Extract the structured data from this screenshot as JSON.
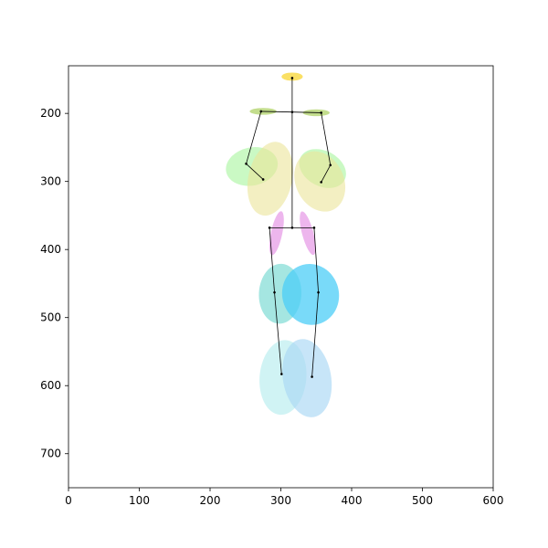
{
  "chart_data": {
    "type": "scatter",
    "title": "",
    "xlabel": "",
    "ylabel": "",
    "xlim": [
      0,
      600
    ],
    "ylim": [
      750,
      130
    ],
    "y_axis_inverted": true,
    "grid": false,
    "x_ticks": [
      0,
      100,
      200,
      300,
      400,
      500,
      600
    ],
    "y_ticks": [
      200,
      300,
      400,
      500,
      600,
      700
    ],
    "x_tick_labels": [
      "0",
      "100",
      "200",
      "300",
      "400",
      "500",
      "600"
    ],
    "y_tick_labels": [
      "200",
      "300",
      "400",
      "500",
      "600",
      "700"
    ],
    "keypoints": [
      {
        "id": "head",
        "x": 316,
        "y": 148
      },
      {
        "id": "neck",
        "x": 316,
        "y": 198
      },
      {
        "id": "left-shoulder",
        "x": 272,
        "y": 197
      },
      {
        "id": "right-shoulder",
        "x": 357,
        "y": 199
      },
      {
        "id": "left-elbow",
        "x": 251,
        "y": 274
      },
      {
        "id": "right-elbow",
        "x": 370,
        "y": 276
      },
      {
        "id": "left-wrist",
        "x": 275,
        "y": 297
      },
      {
        "id": "right-wrist",
        "x": 357,
        "y": 301
      },
      {
        "id": "pelvis",
        "x": 316,
        "y": 368
      },
      {
        "id": "left-hip",
        "x": 284,
        "y": 368
      },
      {
        "id": "right-hip",
        "x": 347,
        "y": 368
      },
      {
        "id": "left-knee",
        "x": 291,
        "y": 463
      },
      {
        "id": "right-knee",
        "x": 353,
        "y": 463
      },
      {
        "id": "left-ankle",
        "x": 301,
        "y": 583
      },
      {
        "id": "right-ankle",
        "x": 344,
        "y": 587
      }
    ],
    "bones": [
      [
        "head",
        "neck"
      ],
      [
        "neck",
        "left-shoulder"
      ],
      [
        "neck",
        "right-shoulder"
      ],
      [
        "left-shoulder",
        "left-elbow"
      ],
      [
        "left-elbow",
        "left-wrist"
      ],
      [
        "right-shoulder",
        "right-elbow"
      ],
      [
        "right-elbow",
        "right-wrist"
      ],
      [
        "neck",
        "pelvis"
      ],
      [
        "pelvis",
        "left-hip"
      ],
      [
        "pelvis",
        "right-hip"
      ],
      [
        "left-hip",
        "left-knee"
      ],
      [
        "left-knee",
        "left-ankle"
      ],
      [
        "right-hip",
        "right-knee"
      ],
      [
        "right-knee",
        "right-ankle"
      ]
    ],
    "ellipses": [
      {
        "id": "head-ellipse",
        "cx": 316,
        "cy": 146,
        "rx": 15,
        "ry": 6,
        "angle": 0,
        "color": "#f9da4a",
        "opacity": 0.85
      },
      {
        "id": "left-shoulder-ellipse",
        "cx": 275,
        "cy": 197,
        "rx": 19,
        "ry": 5,
        "angle": 0,
        "color": "#a9cf5c",
        "opacity": 0.7
      },
      {
        "id": "right-shoulder-ellipse",
        "cx": 350,
        "cy": 199,
        "rx": 19,
        "ry": 5,
        "angle": 0,
        "color": "#a9cf5c",
        "opacity": 0.7
      },
      {
        "id": "left-upper-arm-ellipse",
        "cx": 259,
        "cy": 278,
        "rx": 37,
        "ry": 28,
        "angle": -12,
        "color": "#a7f59d",
        "opacity": 0.6
      },
      {
        "id": "right-upper-arm-ellipse",
        "cx": 359,
        "cy": 281,
        "rx": 35,
        "ry": 26,
        "angle": 28,
        "color": "#a7f59d",
        "opacity": 0.6
      },
      {
        "id": "left-forearm-ellipse",
        "cx": 285,
        "cy": 296,
        "rx": 31,
        "ry": 55,
        "angle": 12,
        "color": "#ebe49a",
        "opacity": 0.6
      },
      {
        "id": "right-forearm-ellipse",
        "cx": 355,
        "cy": 300,
        "rx": 34,
        "ry": 46,
        "angle": -25,
        "color": "#ebe49a",
        "opacity": 0.6
      },
      {
        "id": "left-hip-ellipse",
        "cx": 294,
        "cy": 376,
        "rx": 8,
        "ry": 33,
        "angle": 12,
        "color": "#e597e5",
        "opacity": 0.7
      },
      {
        "id": "right-hip-ellipse",
        "cx": 338,
        "cy": 376,
        "rx": 8,
        "ry": 33,
        "angle": -15,
        "color": "#e597e5",
        "opacity": 0.7
      },
      {
        "id": "left-thigh-ellipse",
        "cx": 299,
        "cy": 465,
        "rx": 30,
        "ry": 44,
        "angle": 3,
        "color": "#7fdcd4",
        "opacity": 0.7
      },
      {
        "id": "right-thigh-ellipse",
        "cx": 342,
        "cy": 466,
        "rx": 40,
        "ry": 45,
        "angle": -15,
        "color": "#4ccdf7",
        "opacity": 0.75
      },
      {
        "id": "left-shin-ellipse",
        "cx": 303,
        "cy": 588,
        "rx": 33,
        "ry": 55,
        "angle": 5,
        "color": "#b7ecee",
        "opacity": 0.65
      },
      {
        "id": "right-shin-ellipse",
        "cx": 337,
        "cy": 589,
        "rx": 34,
        "ry": 58,
        "angle": -10,
        "color": "#a9d7f5",
        "opacity": 0.65
      }
    ],
    "line_color": "#000000",
    "marker_color": "#000000"
  }
}
